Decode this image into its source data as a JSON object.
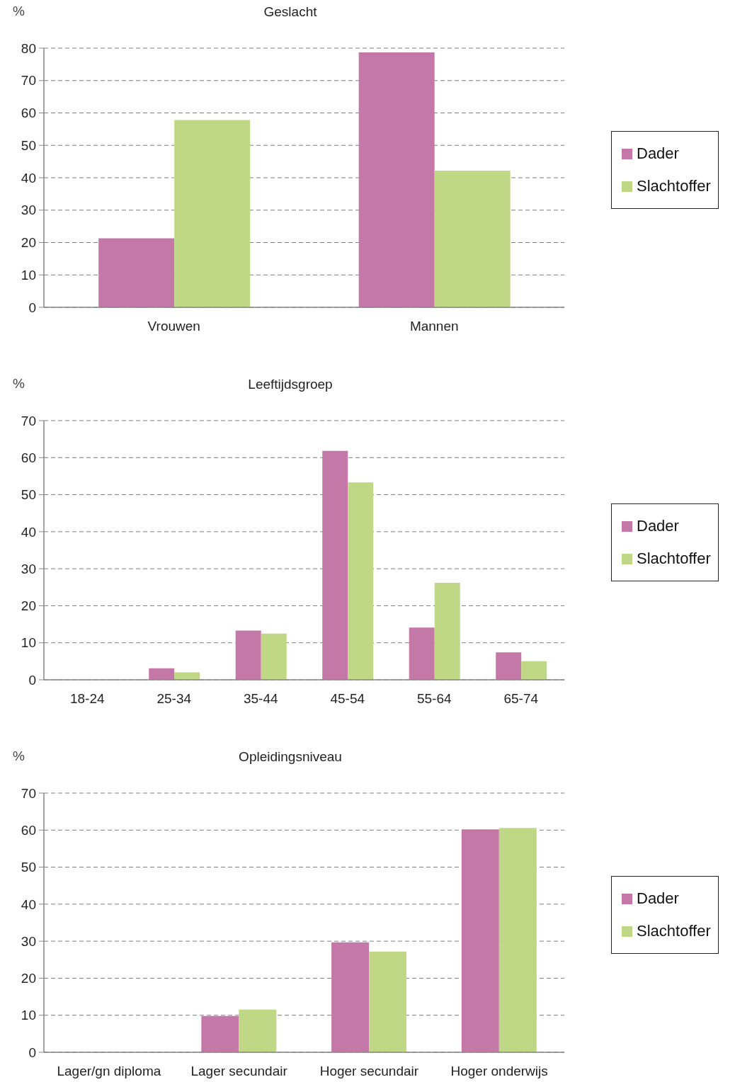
{
  "chart_data": [
    {
      "type": "bar",
      "title": "Geslacht",
      "ylabel": "%",
      "categories": [
        "Vrouwen",
        "Mannen"
      ],
      "series": [
        {
          "name": "Dader",
          "color": "#c478a7",
          "values": [
            21.3,
            78.7
          ]
        },
        {
          "name": "Slachtoffer",
          "color": "#c0d786",
          "values": [
            57.8,
            42.2
          ]
        }
      ],
      "ylim": [
        0,
        80
      ],
      "yticks": [
        0,
        10,
        20,
        30,
        40,
        50,
        60,
        70,
        80
      ],
      "grid": "y",
      "legend": "right"
    },
    {
      "type": "bar",
      "title": "Leeftijdsgroep",
      "ylabel": "%",
      "categories": [
        "18-24",
        "25-34",
        "35-44",
        "45-54",
        "55-64",
        "65-74"
      ],
      "series": [
        {
          "name": "Dader",
          "color": "#c478a7",
          "values": [
            0,
            3.1,
            13.3,
            61.8,
            14.1,
            7.4
          ]
        },
        {
          "name": "Slachtoffer",
          "color": "#c0d786",
          "values": [
            0,
            2,
            12.5,
            53.3,
            26.2,
            5
          ]
        }
      ],
      "ylim": [
        0,
        70
      ],
      "yticks": [
        0,
        10,
        20,
        30,
        40,
        50,
        60,
        70
      ],
      "grid": "y",
      "legend": "right"
    },
    {
      "type": "bar",
      "title": "Opleidingsniveau",
      "ylabel": "%",
      "categories": [
        "Lager/gn diploma",
        "Lager secundair",
        "Hoger secundair",
        "Hoger onderwijs"
      ],
      "series": [
        {
          "name": "Dader",
          "color": "#c478a7",
          "values": [
            0,
            9.8,
            29.7,
            60.2
          ]
        },
        {
          "name": "Slachtoffer",
          "color": "#c0d786",
          "values": [
            0,
            11.5,
            27.2,
            60.6
          ]
        }
      ],
      "ylim": [
        0,
        70
      ],
      "yticks": [
        0,
        10,
        20,
        30,
        40,
        50,
        60,
        70
      ],
      "grid": "y",
      "legend": "right"
    }
  ]
}
